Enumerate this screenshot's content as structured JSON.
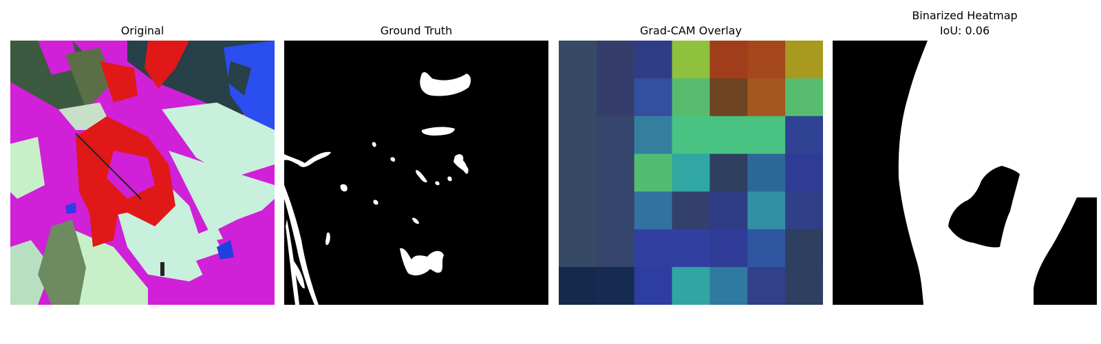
{
  "panels": {
    "original": {
      "title": "Original"
    },
    "ground_truth": {
      "title": "Ground Truth"
    },
    "gradcam": {
      "title": "Grad-CAM Overlay",
      "grid": [
        [
          "#364a66",
          "#353d6a",
          "#2f3c86",
          "#8fc23c",
          "#a03e1c",
          "#a4481c",
          "#a79a1f"
        ],
        [
          "#364a66",
          "#353d6a",
          "#334fa0",
          "#58bc70",
          "#6e4422",
          "#a5571e",
          "#58bc70"
        ],
        [
          "#364a66",
          "#35456b",
          "#357f9e",
          "#48c381",
          "#48c381",
          "#48c381",
          "#2f4294"
        ],
        [
          "#364a66",
          "#35456b",
          "#52bd72",
          "#30a7a2",
          "#2f3f60",
          "#2e6898",
          "#2f3c96"
        ],
        [
          "#364a66",
          "#35456b",
          "#3271a0",
          "#33406e",
          "#2f3c86",
          "#3190a4",
          "#2f3f88"
        ],
        [
          "#364a66",
          "#35456b",
          "#3140a0",
          "#3140a0",
          "#2f3c98",
          "#2f56a0",
          "#2e3f60"
        ],
        [
          "#142a4c",
          "#162b50",
          "#2e3da0",
          "#30a5a4",
          "#2f7aa0",
          "#31408a",
          "#2f3f60"
        ]
      ]
    },
    "binarized": {
      "title_line1": "Binarized Heatmap",
      "title_line2": "IoU: 0.06"
    }
  }
}
